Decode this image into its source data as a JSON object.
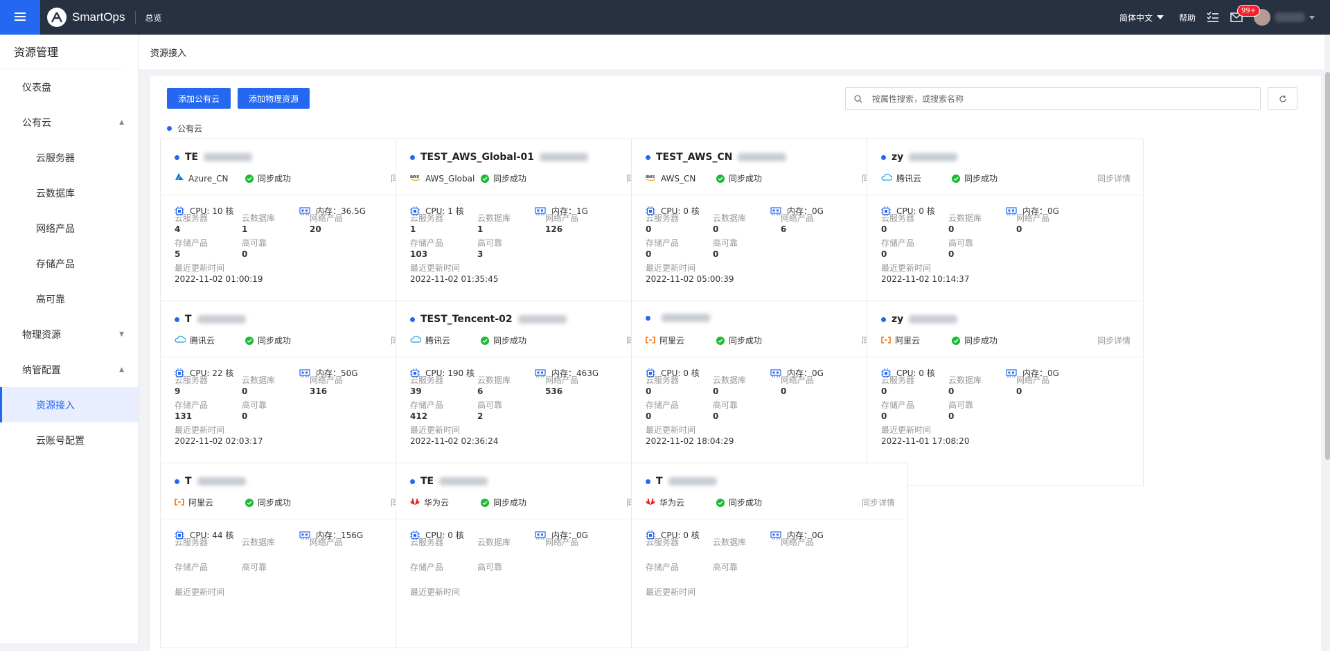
{
  "header": {
    "app_name": "SmartOps",
    "nav_overview": "总览",
    "language": "简体中文",
    "help": "帮助",
    "mail_badge": "99+"
  },
  "sidebar": {
    "title": "资源管理",
    "items": [
      {
        "label": "仪表盘",
        "level": 0,
        "caret": ""
      },
      {
        "label": "公有云",
        "level": 0,
        "caret": "▲"
      },
      {
        "label": "云服务器",
        "level": 1,
        "caret": ""
      },
      {
        "label": "云数据库",
        "level": 1,
        "caret": ""
      },
      {
        "label": "网络产品",
        "level": 1,
        "caret": ""
      },
      {
        "label": "存储产品",
        "level": 1,
        "caret": ""
      },
      {
        "label": "高可靠",
        "level": 1,
        "caret": ""
      },
      {
        "label": "物理资源",
        "level": 0,
        "caret": "▼"
      },
      {
        "label": "纳管配置",
        "level": 0,
        "caret": "▲"
      },
      {
        "label": "资源接入",
        "level": 1,
        "caret": "",
        "active": true
      },
      {
        "label": "云账号配置",
        "level": 1,
        "caret": ""
      }
    ]
  },
  "breadcrumb": "资源接入",
  "toolbar": {
    "add_public_cloud": "添加公有云",
    "add_physical": "添加物理资源",
    "search_placeholder": "按属性搜索，或搜索名称"
  },
  "group_label": "公有云",
  "labels": {
    "status": "同步成功",
    "sync_detail": "同步详情",
    "cpu_prefix": "CPU: ",
    "mem_prefix": "内存：",
    "ecs": "云服务器",
    "db": "云数据库",
    "net": "网络产品",
    "storage": "存储产品",
    "ha": "高可靠",
    "updated": "最近更新时间"
  },
  "colors": {
    "primary": "#2468f2",
    "success": "#1bb934",
    "aliyun": "#ff6a00",
    "huawei": "#e1251b",
    "tencent": "#1b9de2",
    "azure": "#0078d4"
  },
  "cards": [
    {
      "name": "TE",
      "provider": "Azure_CN",
      "icon": "azure",
      "cpu": "10 核",
      "mem": "36.5G",
      "ecs": "4",
      "db": "1",
      "net": "20",
      "storage": "5",
      "ha": "0",
      "updated": "2022-11-02 01:00:19"
    },
    {
      "name": "TEST_AWS_Global-01",
      "provider": "AWS_Global",
      "icon": "aws",
      "cpu": "1 核",
      "mem": "1G",
      "ecs": "1",
      "db": "1",
      "net": "126",
      "storage": "103",
      "ha": "3",
      "updated": "2022-11-02 01:35:45"
    },
    {
      "name": "TEST_AWS_CN",
      "provider": "AWS_CN",
      "icon": "aws",
      "cpu": "0 核",
      "mem": "0G",
      "ecs": "0",
      "db": "0",
      "net": "6",
      "storage": "0",
      "ha": "0",
      "updated": "2022-11-02 05:00:39"
    },
    {
      "name": "zy",
      "provider": "腾讯云",
      "icon": "tencent",
      "cpu": "0 核",
      "mem": "0G",
      "ecs": "0",
      "db": "0",
      "net": "0",
      "storage": "0",
      "ha": "0",
      "updated": "2022-11-02 10:14:37"
    },
    {
      "name": "T",
      "provider": "腾讯云",
      "icon": "tencent",
      "cpu": "22 核",
      "mem": "50G",
      "ecs": "9",
      "db": "0",
      "net": "316",
      "storage": "131",
      "ha": "0",
      "updated": "2022-11-02 02:03:17"
    },
    {
      "name": "TEST_Tencent-02",
      "provider": "腾讯云",
      "icon": "tencent",
      "cpu": "190 核",
      "mem": "463G",
      "ecs": "39",
      "db": "6",
      "net": "536",
      "storage": "412",
      "ha": "2",
      "updated": "2022-11-02 02:36:24",
      "actions": true
    },
    {
      "name": "",
      "provider": "阿里云",
      "icon": "aliyun",
      "cpu": "0 核",
      "mem": "0G",
      "ecs": "0",
      "db": "0",
      "net": "0",
      "storage": "0",
      "ha": "0",
      "updated": "2022-11-02 18:04:29"
    },
    {
      "name": "zy",
      "provider": "阿里云",
      "icon": "aliyun",
      "cpu": "0 核",
      "mem": "0G",
      "ecs": "0",
      "db": "0",
      "net": "0",
      "storage": "0",
      "ha": "0",
      "updated": "2022-11-01 17:08:20"
    },
    {
      "name": "T",
      "provider": "阿里云",
      "icon": "aliyun",
      "cpu": "44 核",
      "mem": "156G",
      "ecs": "",
      "db": "",
      "net": "",
      "storage": "",
      "ha": "",
      "updated": ""
    },
    {
      "name": "TE",
      "provider": "华为云",
      "icon": "huawei",
      "cpu": "0 核",
      "mem": "0G",
      "ecs": "",
      "db": "",
      "net": "",
      "storage": "",
      "ha": "",
      "updated": ""
    },
    {
      "name": "T",
      "provider": "华为云",
      "icon": "huawei",
      "cpu": "0 核",
      "mem": "0G",
      "ecs": "",
      "db": "",
      "net": "",
      "storage": "",
      "ha": "",
      "updated": ""
    }
  ]
}
